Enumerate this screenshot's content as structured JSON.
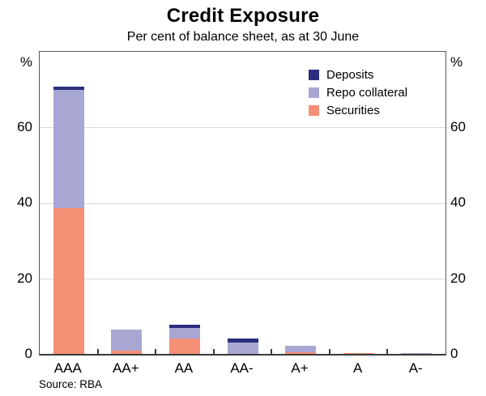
{
  "title": "Credit Exposure",
  "subtitle": "Per cent of balance sheet, as at 30 June",
  "source": "Source: RBA",
  "axis": {
    "unit_label": "%",
    "yticks": [
      0,
      20,
      40,
      60
    ],
    "ymax": 80
  },
  "colors": {
    "deposits": "#2b2d7d",
    "repo_collateral": "#a8a7d3",
    "securities": "#f58f75",
    "frame": "#585858",
    "baseline": "#3a3a3a",
    "gridline": "#d8d8d8"
  },
  "chart_data": {
    "type": "bar",
    "stacked": true,
    "title": "Credit Exposure",
    "subtitle": "Per cent of balance sheet, as at 30 June",
    "categories": [
      "AAA",
      "AA+",
      "AA",
      "AA-",
      "A+",
      "A",
      "A-"
    ],
    "series": [
      {
        "name": "Securities",
        "color": "#f58f75",
        "values": [
          38.8,
          1.0,
          4.3,
          0,
          0.6,
          0.5,
          0
        ]
      },
      {
        "name": "Repo collateral",
        "color": "#a8a7d3",
        "values": [
          31.2,
          5.7,
          2.8,
          3.2,
          1.8,
          0,
          0.4
        ]
      },
      {
        "name": "Deposits",
        "color": "#2b2d7d",
        "values": [
          0.8,
          0,
          0.9,
          1.1,
          0,
          0,
          0
        ]
      }
    ],
    "legend_order_top_to_bottom": [
      "Deposits",
      "Repo collateral",
      "Securities"
    ],
    "ylabel": "%",
    "ylim": [
      0,
      80
    ],
    "yticks": [
      0,
      20,
      40,
      60
    ],
    "grid": true,
    "legend_position": "top-right-inside"
  }
}
